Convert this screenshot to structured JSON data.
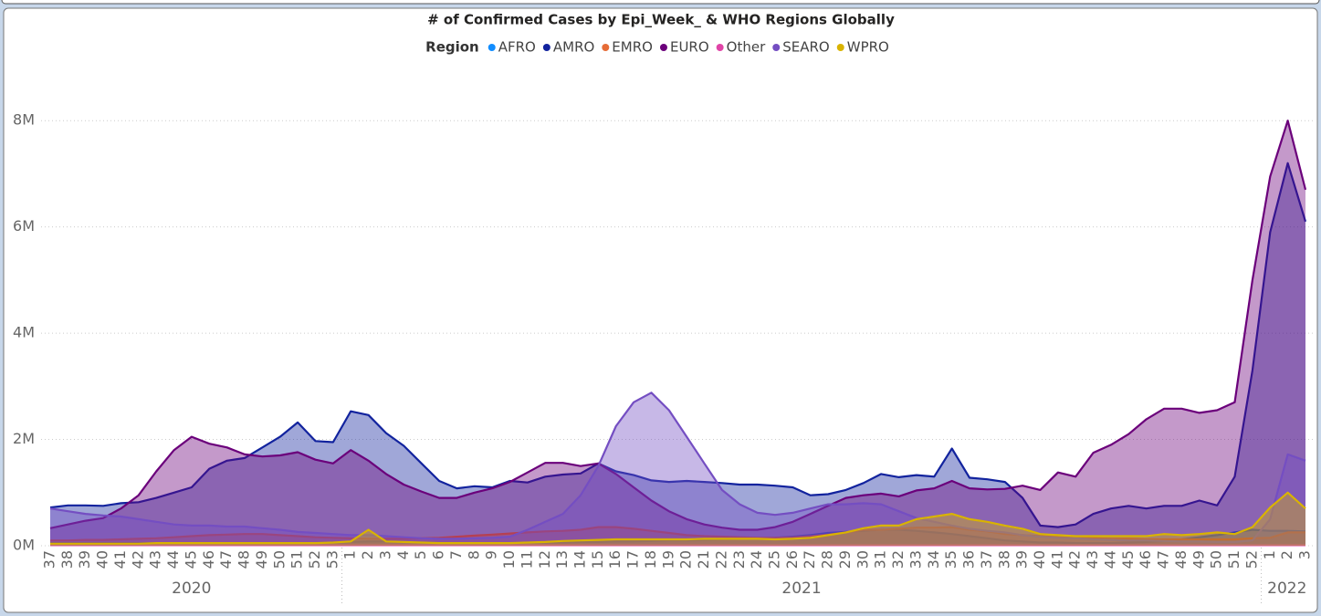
{
  "chart_data": {
    "type": "area",
    "title": "# of Confirmed Cases by Epi_Week_ & WHO Regions Globally",
    "legend_title": "Region",
    "legend_position": "top",
    "grid": true,
    "categories": [
      "37",
      "38",
      "39",
      "40",
      "41",
      "42",
      "43",
      "44",
      "45",
      "46",
      "47",
      "48",
      "49",
      "50",
      "51",
      "52",
      "53",
      "1",
      "2",
      "3",
      "4",
      "5",
      "6",
      "7",
      "8",
      "9",
      "10",
      "11",
      "12",
      "13",
      "14",
      "15",
      "16",
      "17",
      "18",
      "19",
      "20",
      "21",
      "22",
      "23",
      "24",
      "25",
      "26",
      "27",
      "28",
      "29",
      "30",
      "31",
      "32",
      "33",
      "34",
      "35",
      "36",
      "37",
      "38",
      "39",
      "40",
      "41",
      "42",
      "43",
      "44",
      "45",
      "46",
      "47",
      "48",
      "49",
      "50",
      "51",
      "52",
      "1",
      "2",
      "3"
    ],
    "year_labels": [
      "2020",
      "2021",
      "2022"
    ],
    "ylim": [
      0,
      9000000
    ],
    "yticks": [
      {
        "value": 0,
        "label": "0M"
      },
      {
        "value": 2000000,
        "label": "2M"
      },
      {
        "value": 4000000,
        "label": "4M"
      },
      {
        "value": 6000000,
        "label": "6M"
      },
      {
        "value": 8000000,
        "label": "8M"
      }
    ],
    "series": [
      {
        "name": "AFRO",
        "color": "#118DFF",
        "values": [
          50000,
          50000,
          50000,
          50000,
          50000,
          50000,
          50000,
          50000,
          50000,
          50000,
          50000,
          50000,
          50000,
          50000,
          50000,
          50000,
          60000,
          70000,
          80000,
          80000,
          70000,
          60000,
          50000,
          50000,
          50000,
          50000,
          50000,
          60000,
          60000,
          60000,
          70000,
          70000,
          80000,
          80000,
          90000,
          100000,
          100000,
          110000,
          120000,
          130000,
          140000,
          150000,
          170000,
          200000,
          240000,
          260000,
          280000,
          300000,
          300000,
          280000,
          250000,
          220000,
          180000,
          140000,
          100000,
          80000,
          60000,
          60000,
          50000,
          50000,
          50000,
          60000,
          70000,
          90000,
          120000,
          160000,
          200000,
          250000,
          300000,
          280000,
          280000,
          270000
        ]
      },
      {
        "name": "AMRO",
        "color": "#12239E",
        "values": [
          720000,
          760000,
          760000,
          750000,
          800000,
          820000,
          900000,
          1000000,
          1100000,
          1450000,
          1600000,
          1650000,
          1850000,
          2050000,
          2320000,
          1970000,
          1950000,
          2530000,
          2460000,
          2120000,
          1880000,
          1550000,
          1220000,
          1080000,
          1120000,
          1100000,
          1220000,
          1190000,
          1300000,
          1340000,
          1360000,
          1550000,
          1400000,
          1330000,
          1230000,
          1200000,
          1220000,
          1200000,
          1180000,
          1150000,
          1150000,
          1130000,
          1100000,
          950000,
          970000,
          1050000,
          1180000,
          1350000,
          1290000,
          1330000,
          1300000,
          1830000,
          1280000,
          1250000,
          1200000,
          900000,
          380000,
          350000,
          400000,
          600000,
          700000,
          750000,
          700000,
          750000,
          750000,
          850000,
          760000,
          1300000,
          3300000,
          5900000,
          7200000,
          6100000
        ]
      },
      {
        "name": "EMRO",
        "color": "#E66C37",
        "values": [
          100000,
          100000,
          110000,
          110000,
          120000,
          130000,
          140000,
          160000,
          180000,
          200000,
          210000,
          220000,
          220000,
          200000,
          180000,
          160000,
          150000,
          140000,
          130000,
          130000,
          130000,
          140000,
          150000,
          170000,
          190000,
          210000,
          230000,
          250000,
          270000,
          280000,
          300000,
          350000,
          350000,
          320000,
          280000,
          240000,
          200000,
          180000,
          170000,
          160000,
          150000,
          150000,
          160000,
          180000,
          210000,
          250000,
          300000,
          300000,
          320000,
          340000,
          340000,
          350000,
          300000,
          270000,
          220000,
          200000,
          180000,
          160000,
          150000,
          140000,
          130000,
          130000,
          120000,
          120000,
          120000,
          120000,
          120000,
          120000,
          140000,
          150000,
          250000,
          250000
        ]
      },
      {
        "name": "EURO",
        "color": "#6B007B",
        "values": [
          330000,
          400000,
          470000,
          520000,
          700000,
          950000,
          1400000,
          1800000,
          2050000,
          1920000,
          1850000,
          1720000,
          1680000,
          1700000,
          1760000,
          1620000,
          1550000,
          1800000,
          1600000,
          1350000,
          1150000,
          1020000,
          900000,
          900000,
          1000000,
          1080000,
          1200000,
          1380000,
          1560000,
          1560000,
          1500000,
          1550000,
          1350000,
          1100000,
          850000,
          650000,
          500000,
          400000,
          340000,
          300000,
          300000,
          350000,
          450000,
          600000,
          750000,
          900000,
          950000,
          980000,
          930000,
          1040000,
          1080000,
          1220000,
          1080000,
          1060000,
          1070000,
          1130000,
          1050000,
          1380000,
          1300000,
          1750000,
          1900000,
          2100000,
          2380000,
          2580000,
          2580000,
          2500000,
          2550000,
          2700000,
          5000000,
          6950000,
          8000000,
          6700000
        ]
      },
      {
        "name": "Other",
        "color": "#E044A7",
        "values": [
          10000,
          10000,
          10000,
          10000,
          10000,
          10000,
          10000,
          10000,
          10000,
          10000,
          10000,
          10000,
          10000,
          10000,
          10000,
          10000,
          10000,
          10000,
          10000,
          10000,
          10000,
          10000,
          10000,
          10000,
          10000,
          10000,
          10000,
          10000,
          10000,
          10000,
          10000,
          10000,
          10000,
          10000,
          10000,
          10000,
          10000,
          10000,
          10000,
          10000,
          10000,
          10000,
          10000,
          10000,
          10000,
          10000,
          10000,
          10000,
          10000,
          10000,
          10000,
          10000,
          10000,
          10000,
          10000,
          10000,
          10000,
          10000,
          10000,
          10000,
          10000,
          10000,
          10000,
          10000,
          10000,
          10000,
          10000,
          10000,
          10000,
          10000,
          10000,
          10000
        ]
      },
      {
        "name": "SEARO",
        "color": "#744EC2",
        "values": [
          700000,
          650000,
          600000,
          570000,
          550000,
          500000,
          450000,
          400000,
          380000,
          380000,
          360000,
          360000,
          330000,
          300000,
          260000,
          240000,
          220000,
          200000,
          200000,
          180000,
          160000,
          140000,
          130000,
          130000,
          140000,
          150000,
          170000,
          300000,
          450000,
          600000,
          950000,
          1500000,
          2250000,
          2700000,
          2880000,
          2550000,
          2050000,
          1550000,
          1050000,
          780000,
          620000,
          580000,
          620000,
          700000,
          780000,
          780000,
          800000,
          780000,
          650000,
          520000,
          450000,
          380000,
          320000,
          280000,
          250000,
          200000,
          170000,
          150000,
          140000,
          120000,
          110000,
          100000,
          100000,
          90000,
          80000,
          80000,
          70000,
          70000,
          100000,
          500000,
          1720000,
          1600000
        ]
      },
      {
        "name": "WPRO",
        "color": "#D9B300",
        "values": [
          40000,
          40000,
          40000,
          40000,
          40000,
          40000,
          50000,
          50000,
          50000,
          50000,
          50000,
          50000,
          50000,
          50000,
          50000,
          50000,
          60000,
          80000,
          300000,
          80000,
          70000,
          60000,
          50000,
          50000,
          50000,
          50000,
          50000,
          60000,
          70000,
          90000,
          100000,
          110000,
          120000,
          120000,
          120000,
          120000,
          120000,
          130000,
          130000,
          130000,
          130000,
          120000,
          130000,
          150000,
          200000,
          250000,
          330000,
          380000,
          380000,
          500000,
          550000,
          600000,
          500000,
          450000,
          380000,
          320000,
          220000,
          200000,
          180000,
          180000,
          180000,
          180000,
          180000,
          220000,
          200000,
          220000,
          250000,
          220000,
          350000,
          720000,
          1000000,
          700000
        ]
      }
    ]
  }
}
